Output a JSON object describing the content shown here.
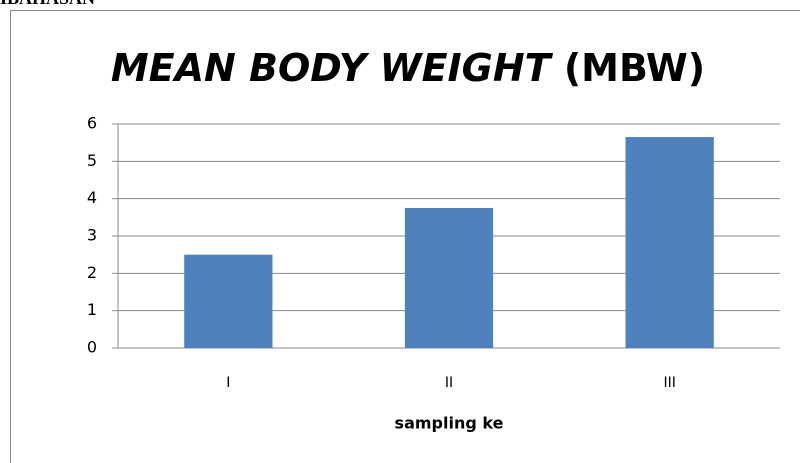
{
  "header": "IBAHASAN",
  "chart_data": {
    "type": "bar",
    "title": "MEAN BODY WEIGHT (MBW)",
    "x_label": "sampling ke",
    "categories": [
      "I",
      "II",
      "III"
    ],
    "values": [
      2.5,
      3.75,
      5.65
    ],
    "color": "#4f81bd",
    "ylim": [
      0,
      6
    ],
    "yticks": [
      0,
      1,
      2,
      3,
      4,
      5,
      6
    ],
    "grid": true
  }
}
